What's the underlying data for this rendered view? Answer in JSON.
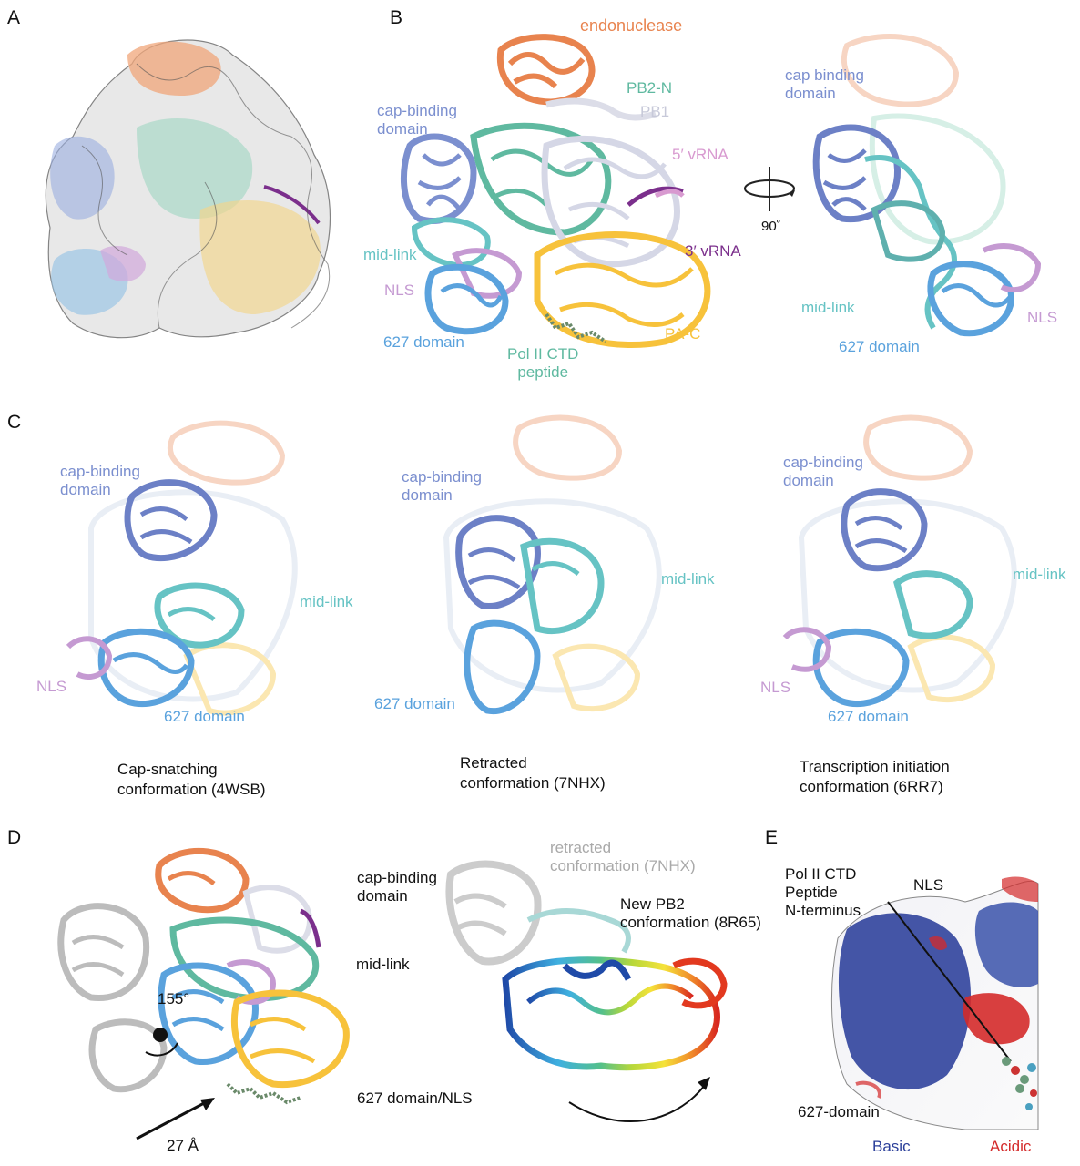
{
  "panels": {
    "A": "A",
    "B": "B",
    "C": "C",
    "D": "D",
    "E": "E"
  },
  "colors": {
    "endonuclease": "#e8834e",
    "pb2n": "#5fb9a0",
    "pb1": "#d5d7e6",
    "vrna5": "#d89ad0",
    "vrna3": "#7b2f8c",
    "cap_binding": "#7b8fcf",
    "mid_link": "#66c3c4",
    "nls": "#c59ad2",
    "domain627": "#5aa2dd",
    "pac": "#f7c23b",
    "grey": "#b9b9b9",
    "basic": "#2b3f9a",
    "acidic": "#d42a2a"
  },
  "panel_b": {
    "endonuclease": "endonuclease",
    "pb2n": "PB2-N",
    "pb1": "PB1",
    "cap_binding": [
      "cap-binding",
      "domain"
    ],
    "vrna5": "5′ vRNA",
    "vrna3": "3′ vRNA",
    "rotation": "90˚",
    "mid_link": "mid-link",
    "nls": "NLS",
    "domain627": "627 domain",
    "polii": [
      "Pol II CTD",
      "peptide"
    ],
    "pac": "PA-C",
    "rot_cap_binding": [
      "cap binding",
      "domain"
    ],
    "rot_mid_link": "mid-link",
    "rot_nls": "NLS",
    "rot_627": "627 domain"
  },
  "panel_c": [
    {
      "cap_binding": [
        "cap-binding",
        "domain"
      ],
      "mid_link": "mid-link",
      "nls": "NLS",
      "domain627": "627 domain",
      "caption": [
        "Cap-snatching",
        "conformation (4WSB)"
      ]
    },
    {
      "cap_binding": [
        "cap-binding",
        "domain"
      ],
      "mid_link": "mid-link",
      "domain627": "627 domain",
      "caption": [
        "Retracted",
        "conformation (7NHX)"
      ]
    },
    {
      "cap_binding": [
        "cap-binding",
        "domain"
      ],
      "mid_link": "mid-link",
      "nls": "NLS",
      "domain627": "627 domain",
      "caption": [
        "Transcription initiation",
        "conformation (6RR7)"
      ]
    }
  ],
  "panel_d": {
    "angle": "155°",
    "distance": "27 Å",
    "cap_binding": [
      "cap-binding",
      "domain"
    ],
    "mid_link": "mid-link",
    "domain627_nls": "627 domain/NLS",
    "retracted": [
      "retracted",
      "conformation (7NHX)"
    ],
    "new_pb2": [
      "New PB2",
      "conformation (8R65)"
    ]
  },
  "panel_e": {
    "polii": [
      "Pol II CTD",
      "Peptide",
      "N-terminus"
    ],
    "nls": "NLS",
    "domain627": "627-domain",
    "basic": "Basic",
    "acidic": "Acidic"
  }
}
